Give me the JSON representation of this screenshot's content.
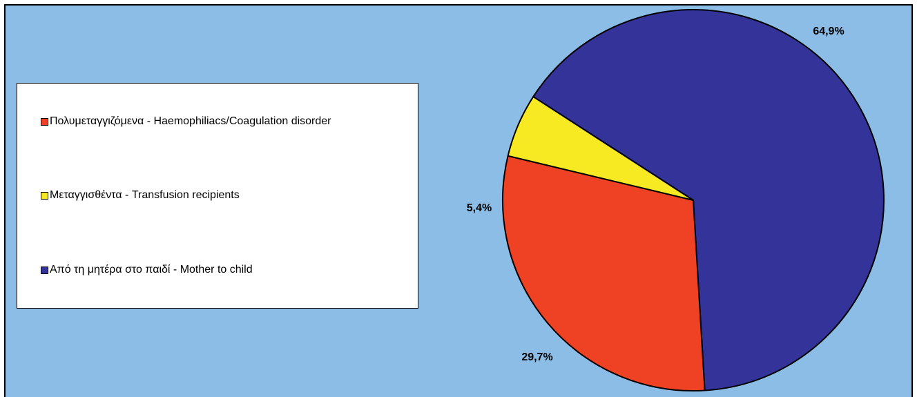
{
  "chart_data": {
    "type": "pie",
    "title": "",
    "categories": [
      "Από τη μητέρα στο παιδί - Mother to child",
      "Πολυμεταγγιζόμενα - Haemophiliacs/Coagulation disorder",
      "Μεταγγισθέντα - Transfusion recipients"
    ],
    "values": [
      64.9,
      29.7,
      5.4
    ],
    "value_labels": [
      "64,9%",
      "29,7%",
      "5,4%"
    ],
    "colors": [
      "#333399",
      "#ef4123",
      "#f7ea22"
    ],
    "legend_position": "left",
    "background_color": "#8cbde6"
  },
  "legend": [
    {
      "label": "Πολυμεταγγιζόμενα - Haemophiliacs/Coagulation disorder",
      "color": "#ef4123"
    },
    {
      "label": "Μεταγγισθέντα - Transfusion recipients",
      "color": "#f7ea22"
    },
    {
      "label": "Από τη μητέρα στο παιδί - Mother to child",
      "color": "#333399"
    }
  ]
}
